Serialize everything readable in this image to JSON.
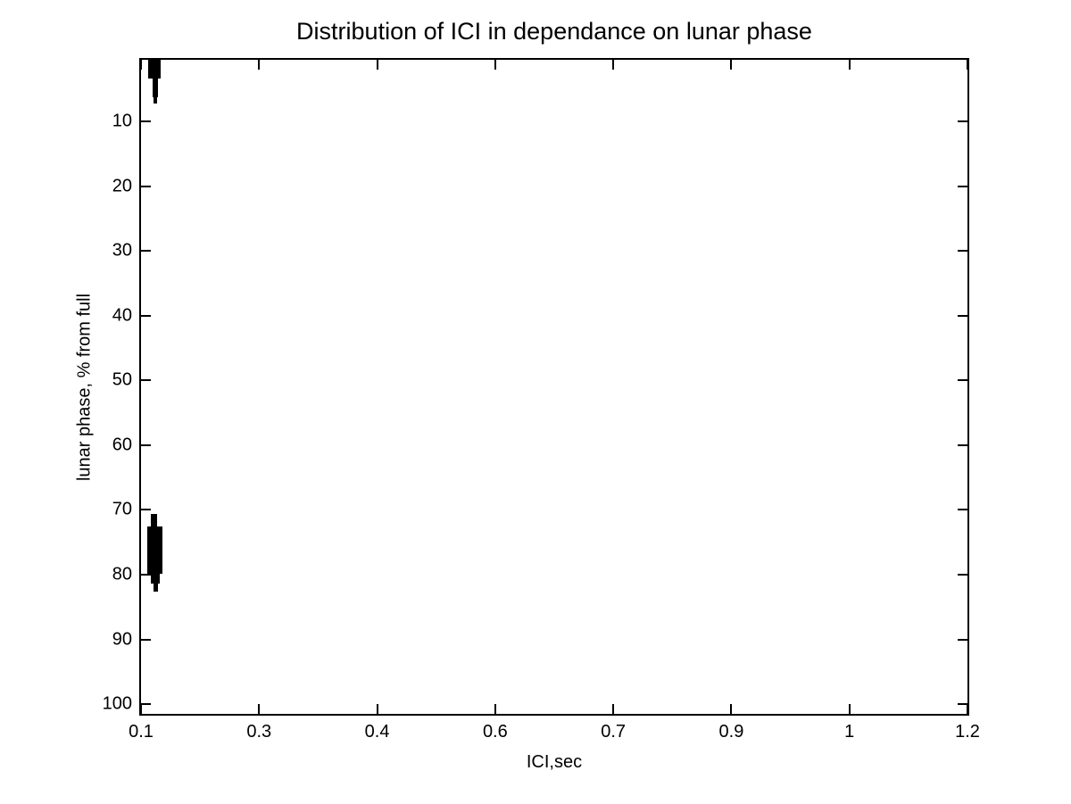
{
  "figure": {
    "background_color": "#ffffff",
    "foreground_color": "#000000"
  },
  "chart_data": {
    "type": "scatter",
    "title": "Distribution of ICI in dependance on lunar phase",
    "xlabel": "ICI,sec",
    "ylabel": "lunar phase, % from full",
    "xlim": [
      0.1,
      1.2
    ],
    "ylim": [
      0.5,
      101.5
    ],
    "y_axis_reversed": true,
    "grid": false,
    "legend": null,
    "marker_color": "#000000",
    "axis_color": "#000000",
    "xtick_labels": [
      "0.1",
      "0.3",
      "0.4",
      "0.6",
      "0.7",
      "0.9",
      "1",
      "1.2"
    ],
    "ytick_values": [
      10,
      20,
      30,
      40,
      50,
      60,
      70,
      80,
      90,
      100
    ],
    "ytick_labels": [
      "10",
      "20",
      "30",
      "40",
      "50",
      "60",
      "70",
      "80",
      "90",
      "100"
    ],
    "clusters": [
      {
        "name": "cluster-1",
        "description": "dense overlapping markers, ICI ~0.109-0.127 s, lunar phase ~0.5-7%",
        "ici_range": [
          0.109,
          0.127
        ],
        "phase_range": [
          0.5,
          7.2
        ],
        "rects": [
          {
            "x0": 0.109,
            "x1": 0.126,
            "y0": 0.5,
            "y1": 3.4
          },
          {
            "x0": 0.115,
            "x1": 0.123,
            "y0": 3.4,
            "y1": 6.3
          },
          {
            "x0": 0.117,
            "x1": 0.121,
            "y0": 6.3,
            "y1": 7.2
          }
        ]
      },
      {
        "name": "cluster-2",
        "description": "dense overlapping markers, ICI ~0.108-0.129 s, lunar phase ~70.6-82.6%",
        "ici_range": [
          0.108,
          0.129
        ],
        "phase_range": [
          70.6,
          82.6
        ],
        "rects": [
          {
            "x0": 0.113,
            "x1": 0.121,
            "y0": 70.6,
            "y1": 72.5
          },
          {
            "x0": 0.108,
            "x1": 0.129,
            "y0": 72.5,
            "y1": 79.8
          },
          {
            "x0": 0.113,
            "x1": 0.125,
            "y0": 79.8,
            "y1": 81.4
          },
          {
            "x0": 0.117,
            "x1": 0.122,
            "y0": 81.4,
            "y1": 82.6
          }
        ]
      }
    ]
  }
}
